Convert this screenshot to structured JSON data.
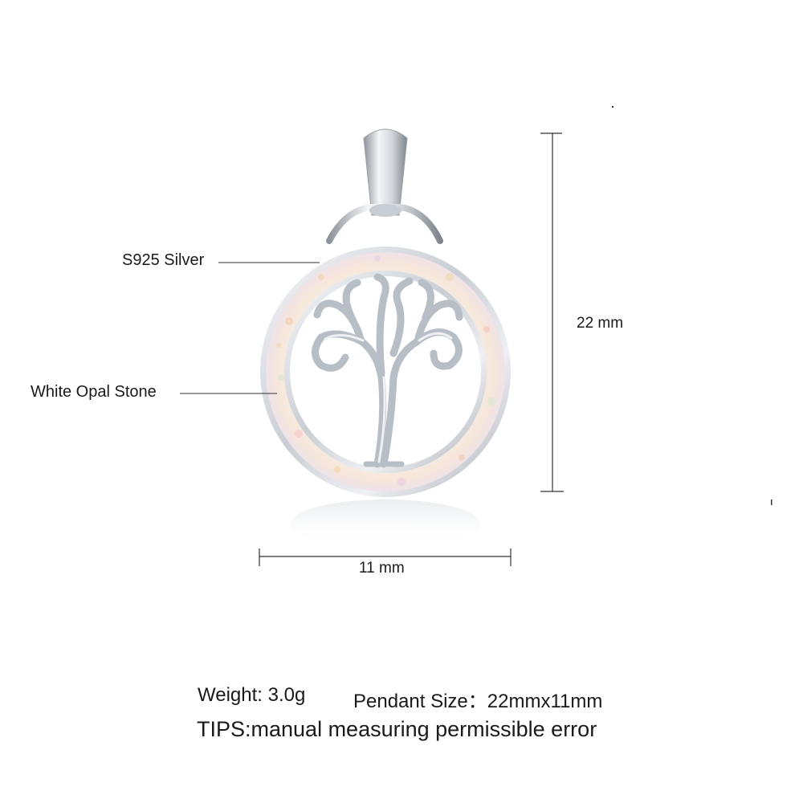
{
  "callouts": {
    "material_label": "S925 Silver",
    "stone_label": "White Opal Stone"
  },
  "dimensions": {
    "height_label": "22 mm",
    "width_label": "11 mm"
  },
  "specs": {
    "weight": "Weight: 3.0g",
    "size": "Pendant Size：22mmx11mm",
    "tips": "TIPS:manual measuring permissible error"
  },
  "colors": {
    "silver": "#d9dde2",
    "opal_base": "#f6efe8",
    "line": "#333333"
  },
  "icons": {
    "product": "tree-of-life-pendant-icon"
  }
}
